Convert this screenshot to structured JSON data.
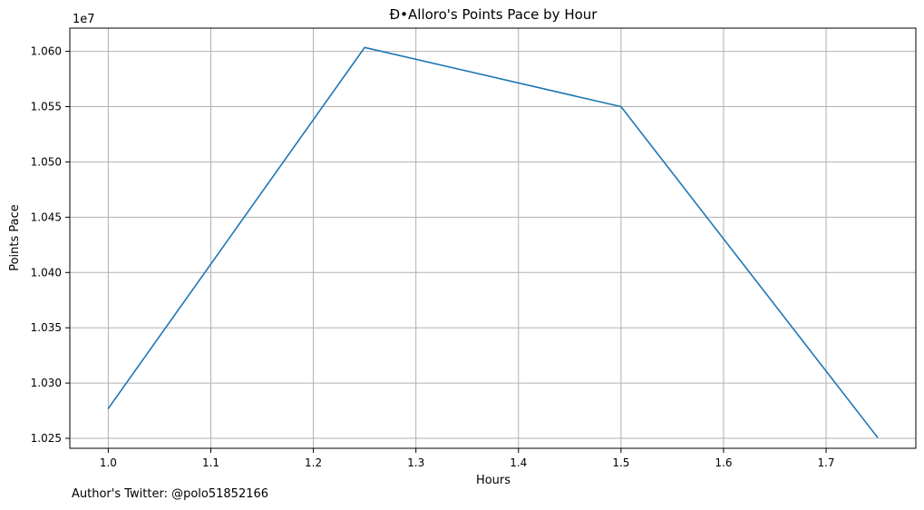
{
  "chart_data": {
    "type": "line",
    "title": "Ð•Alloro's Points Pace by Hour",
    "xlabel": "Hours",
    "ylabel": "Points Pace",
    "y_offset_label": "1e7",
    "x_ticks": [
      "1.0",
      "1.1",
      "1.2",
      "1.3",
      "1.4",
      "1.5",
      "1.6",
      "1.7"
    ],
    "y_ticks": [
      "1.025",
      "1.030",
      "1.035",
      "1.040",
      "1.045",
      "1.050",
      "1.055",
      "1.060"
    ],
    "xlim": [
      0.9625,
      1.7875
    ],
    "ylim": [
      10241000,
      10621000
    ],
    "grid": true,
    "series": [
      {
        "color": "#1f77b4",
        "x": [
          1.0,
          1.25,
          1.5,
          1.75
        ],
        "y": [
          10277000,
          10603500,
          10550000,
          10251000
        ]
      }
    ]
  },
  "footer": {
    "author_note": "Author's Twitter: @polo51852166"
  }
}
